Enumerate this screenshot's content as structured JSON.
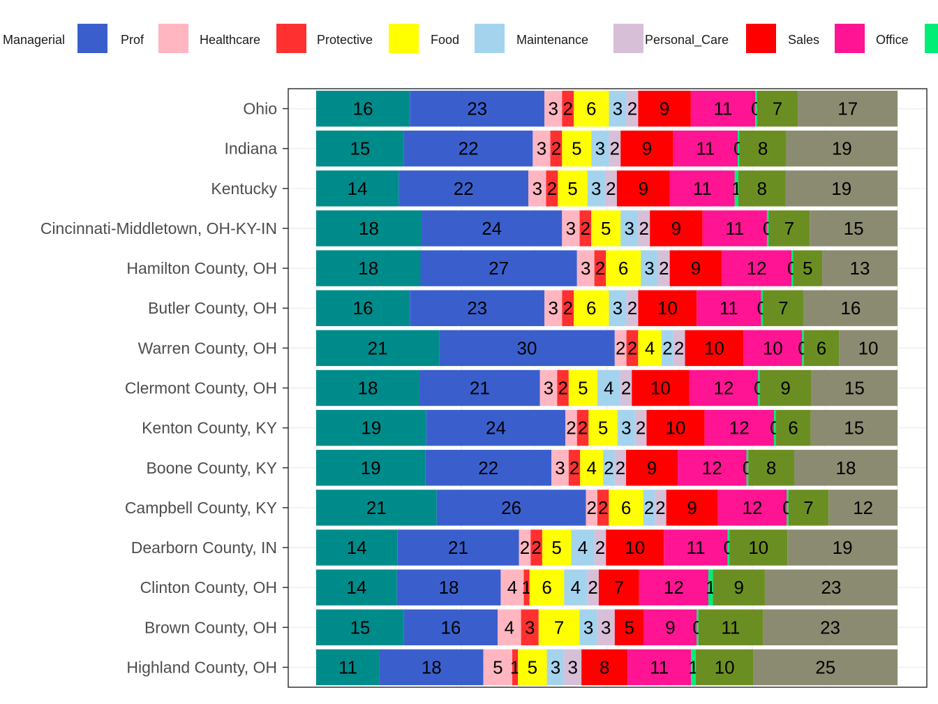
{
  "chart_data": {
    "type": "bar",
    "orientation": "horizontal",
    "stacked": true,
    "percent_stacked": true,
    "title": "",
    "xlabel": "",
    "ylabel": "",
    "grid": true,
    "legend_position": "top",
    "categories": [
      "Ohio",
      "Indiana",
      "Kentucky",
      "Cincinnati-Middletown, OH-KY-IN",
      "Hamilton County, OH",
      "Butler County, OH",
      "Warren County, OH",
      "Clermont County, OH",
      "Kenton County, KY",
      "Boone County, KY",
      "Campbell County, KY",
      "Dearborn County, IN",
      "Clinton County, OH",
      "Brown County, OH",
      "Highland County, OH"
    ],
    "legend": {
      "visible_entries": [
        "Managerial",
        "Prof",
        "Healthcare",
        "Protective",
        "Food",
        "Maintenance",
        "Personal_Care",
        "Sales",
        "Office"
      ]
    },
    "series": [
      {
        "name": "Managerial",
        "color": "#008B8B",
        "values": [
          16,
          15,
          14,
          18,
          18,
          16,
          21,
          18,
          19,
          19,
          21,
          14,
          14,
          15,
          11
        ],
        "labels": [
          "16",
          "15",
          "14",
          "18",
          "18",
          "16",
          "21",
          "18",
          "19",
          "19",
          "21",
          "14",
          "14",
          "15",
          "11"
        ]
      },
      {
        "name": "Prof",
        "color": "#3A5FCD",
        "values": [
          23,
          22,
          22,
          24,
          27,
          23,
          30,
          21,
          24,
          22,
          26,
          21,
          18,
          16,
          18
        ],
        "labels": [
          "23",
          "22",
          "22",
          "24",
          "27",
          "23",
          "30",
          "21",
          "24",
          "22",
          "26",
          "21",
          "18",
          "16",
          "18"
        ]
      },
      {
        "name": "Healthcare",
        "color": "#FFB6C1",
        "values": [
          3,
          3,
          3,
          3,
          3,
          3,
          2,
          3,
          2,
          3,
          2,
          2,
          4,
          4,
          5
        ],
        "labels": [
          "3",
          "3",
          "3",
          "3",
          "3",
          "3",
          "2",
          "3",
          "2",
          "3",
          "2",
          "2",
          "4",
          "4",
          "5"
        ]
      },
      {
        "name": "Protective",
        "color": "#FF3030",
        "values": [
          2,
          2,
          2,
          2,
          2,
          2,
          2,
          2,
          2,
          2,
          2,
          2,
          1,
          3,
          1
        ],
        "labels": [
          "2",
          "2",
          "2",
          "2",
          "2",
          "2",
          "2",
          "2",
          "2",
          "2",
          "2",
          "2",
          "1",
          "3",
          "1"
        ]
      },
      {
        "name": "Food",
        "color": "#FFFF00",
        "values": [
          6,
          5,
          5,
          5,
          6,
          6,
          4,
          5,
          5,
          4,
          6,
          5,
          6,
          7,
          5
        ],
        "labels": [
          "6",
          "5",
          "5",
          "5",
          "6",
          "6",
          "4",
          "5",
          "5",
          "4",
          "6",
          "5",
          "6",
          "7",
          "5"
        ]
      },
      {
        "name": "Maintenance",
        "color": "#A4D3EE",
        "values": [
          3,
          3,
          3,
          3,
          3,
          3,
          2,
          4,
          3,
          2,
          2,
          4,
          4,
          3,
          3
        ],
        "labels": [
          "3",
          "3",
          "3",
          "3",
          "3",
          "3",
          "2",
          "4",
          "3",
          "2",
          "2",
          "4",
          "4",
          "3",
          "3"
        ]
      },
      {
        "name": "Personal_Care",
        "color": "#D8BFD8",
        "values": [
          2,
          2,
          2,
          2,
          2,
          2,
          2,
          2,
          2,
          2,
          2,
          2,
          2,
          3,
          3
        ],
        "labels": [
          "2",
          "2",
          "2",
          "2",
          "2",
          "2",
          "2",
          "2",
          "2",
          "2",
          "2",
          "2",
          "2",
          "3",
          "3"
        ]
      },
      {
        "name": "Sales",
        "color": "#FF0000",
        "values": [
          9,
          9,
          9,
          9,
          9,
          10,
          10,
          10,
          10,
          9,
          9,
          10,
          7,
          5,
          8
        ],
        "labels": [
          "9",
          "9",
          "9",
          "9",
          "9",
          "10",
          "10",
          "10",
          "10",
          "9",
          "9",
          "10",
          "7",
          "5",
          "8"
        ]
      },
      {
        "name": "Office",
        "color": "#FF1493",
        "values": [
          11,
          11,
          11,
          11,
          12,
          11,
          10,
          12,
          12,
          12,
          12,
          11,
          12,
          9,
          11
        ],
        "labels": [
          "11",
          "11",
          "11",
          "11",
          "12",
          "11",
          "10",
          "12",
          "12",
          "12",
          "12",
          "11",
          "12",
          "9",
          "11"
        ]
      },
      {
        "color": "#00EE76",
        "values": [
          0.3,
          0.3,
          0.6,
          0.3,
          0.3,
          0.3,
          0.3,
          0.3,
          0.3,
          0.3,
          0.3,
          0.3,
          0.8,
          0.3,
          0.8
        ],
        "labels": [
          "0",
          "0",
          "1",
          "0",
          "0",
          "0",
          "0",
          "0",
          "0",
          "0",
          "0",
          "0",
          "1",
          "0",
          "1"
        ]
      },
      {
        "color": "#6B8E23",
        "values": [
          7,
          8,
          8,
          7,
          5,
          7,
          6,
          9,
          6,
          8,
          7,
          10,
          9,
          11,
          10
        ],
        "labels": [
          "7",
          "8",
          "8",
          "7",
          "5",
          "7",
          "6",
          "9",
          "6",
          "8",
          "7",
          "10",
          "9",
          "11",
          "10"
        ]
      },
      {
        "color": "#8B8B72",
        "values": [
          17,
          19,
          19,
          15,
          13,
          16,
          10,
          15,
          15,
          18,
          12,
          19,
          23,
          23,
          25
        ],
        "labels": [
          "17",
          "19",
          "19",
          "15",
          "13",
          "16",
          "10",
          "15",
          "15",
          "18",
          "12",
          "19",
          "23",
          "23",
          "25"
        ]
      }
    ]
  }
}
